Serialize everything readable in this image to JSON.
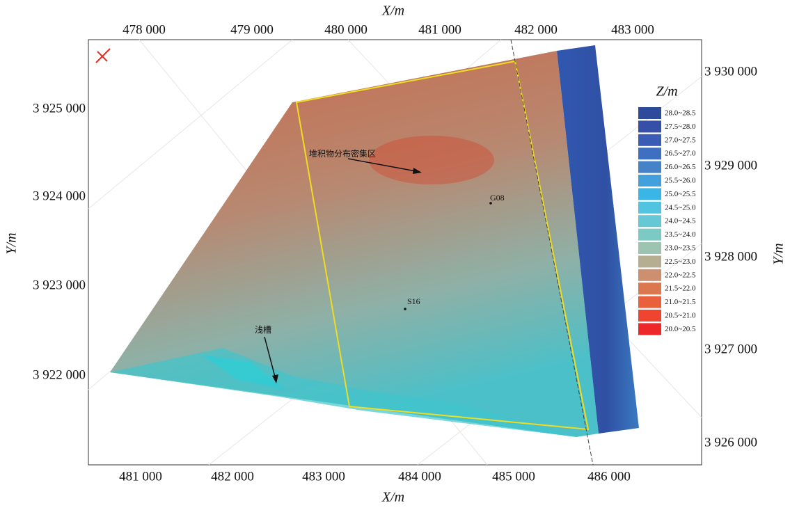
{
  "axes": {
    "top_title": "X/m",
    "bottom_title": "X/m",
    "left_title": "Y/m",
    "right_title": "Y/m",
    "top_ticks": [
      "478 000",
      "479 000",
      "480 000",
      "481 000",
      "482 000",
      "483 000"
    ],
    "bottom_ticks": [
      "481 000",
      "482 000",
      "483 000",
      "484 000",
      "485 000",
      "486 000"
    ],
    "left_ticks": [
      "3 925 000",
      "3 924 000",
      "3 923 000",
      "3 922 000"
    ],
    "right_ticks": [
      "3 930 000",
      "3 929 000",
      "3 928 000",
      "3 927 000",
      "3 926 000"
    ]
  },
  "annotations": {
    "dense_area": "堆积物分布密集区",
    "trough": "浅槽",
    "g08": "G08",
    "s16": "S16"
  },
  "legend": {
    "title": "Z/m",
    "items": [
      {
        "label": "28.0~28.5",
        "color": "#2e4a9a"
      },
      {
        "label": "27.5~28.0",
        "color": "#3550a6"
      },
      {
        "label": "27.0~27.5",
        "color": "#3a5cb4"
      },
      {
        "label": "26.5~27.0",
        "color": "#3f6fc0"
      },
      {
        "label": "26.0~26.5",
        "color": "#4682c8"
      },
      {
        "label": "25.5~26.0",
        "color": "#44a0dc"
      },
      {
        "label": "25.0~25.5",
        "color": "#3ab6e6"
      },
      {
        "label": "24.5~25.0",
        "color": "#52c4e0"
      },
      {
        "label": "24.0~24.5",
        "color": "#66c8d4"
      },
      {
        "label": "23.5~24.0",
        "color": "#7ccac4"
      },
      {
        "label": "23.0~23.5",
        "color": "#9cc4b0"
      },
      {
        "label": "22.5~23.0",
        "color": "#b6ae90"
      },
      {
        "label": "22.0~22.5",
        "color": "#cc9070"
      },
      {
        "label": "21.5~22.0",
        "color": "#dc7850"
      },
      {
        "label": "21.0~21.5",
        "color": "#e8603c"
      },
      {
        "label": "20.5~21.0",
        "color": "#ee4430"
      },
      {
        "label": "20.0~20.5",
        "color": "#ee2828"
      }
    ]
  }
}
